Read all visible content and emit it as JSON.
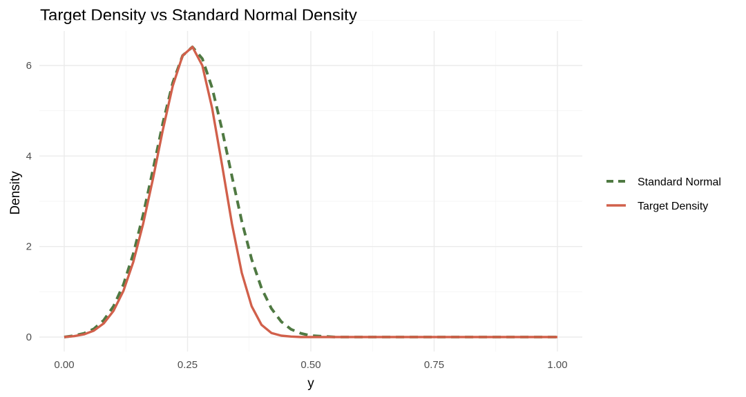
{
  "chart_data": {
    "type": "line",
    "title": "Target Density vs Standard Normal Density",
    "xlabel": "y",
    "ylabel": "Density",
    "xlim": [
      0,
      1
    ],
    "ylim": [
      0,
      6.5
    ],
    "x_ticks": [
      0,
      0.25,
      0.5,
      0.75,
      1
    ],
    "x_tick_labels": [
      "0.00",
      "0.25",
      "0.50",
      "0.75",
      "1.00"
    ],
    "y_ticks": [
      0,
      2,
      4,
      6
    ],
    "y_tick_labels": [
      "0",
      "2",
      "4",
      "6"
    ],
    "grid": true,
    "legend_position": "right",
    "series": [
      {
        "name": "Standard Normal",
        "color": "#4f7942",
        "dash": "dashed",
        "x": [
          0,
          0.02,
          0.04,
          0.06,
          0.08,
          0.1,
          0.12,
          0.14,
          0.16,
          0.18,
          0.2,
          0.22,
          0.24,
          0.26,
          0.28,
          0.3,
          0.32,
          0.34,
          0.36,
          0.38,
          0.4,
          0.42,
          0.44,
          0.46,
          0.48,
          0.5,
          0.55,
          0.6,
          0.7,
          0.8,
          0.9,
          1.0
        ],
        "y": [
          0.0,
          0.03,
          0.08,
          0.18,
          0.37,
          0.68,
          1.16,
          1.84,
          2.7,
          3.7,
          4.73,
          5.62,
          6.22,
          6.41,
          6.15,
          5.5,
          4.58,
          3.55,
          2.56,
          1.72,
          1.08,
          0.63,
          0.34,
          0.17,
          0.08,
          0.03,
          0.0,
          0.0,
          0.0,
          0.0,
          0.0,
          0.0
        ]
      },
      {
        "name": "Target Density",
        "color": "#d1604b",
        "dash": "solid",
        "x": [
          0,
          0.02,
          0.04,
          0.06,
          0.08,
          0.1,
          0.12,
          0.14,
          0.16,
          0.18,
          0.2,
          0.22,
          0.24,
          0.26,
          0.28,
          0.3,
          0.32,
          0.34,
          0.36,
          0.38,
          0.4,
          0.42,
          0.44,
          0.46,
          0.48,
          0.5,
          0.55,
          0.6,
          0.7,
          0.8,
          0.9,
          1.0
        ],
        "y": [
          0.0,
          0.02,
          0.06,
          0.14,
          0.3,
          0.58,
          1.02,
          1.66,
          2.5,
          3.5,
          4.58,
          5.55,
          6.22,
          6.41,
          6.0,
          5.05,
          3.8,
          2.5,
          1.42,
          0.68,
          0.27,
          0.09,
          0.03,
          0.01,
          0.0,
          0.0,
          0.0,
          0.0,
          0.0,
          0.0,
          0.0,
          0.0
        ]
      }
    ]
  }
}
